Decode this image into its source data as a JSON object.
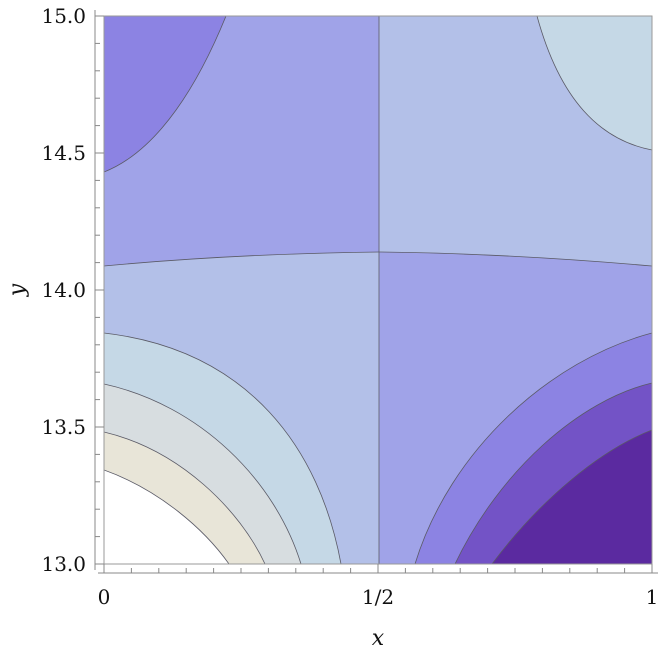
{
  "chart_data": {
    "type": "contour",
    "xlabel": "x",
    "ylabel": "y",
    "xlim": [
      0,
      1
    ],
    "ylim": [
      13.0,
      15.0
    ],
    "x_ticks": [
      {
        "value": 0,
        "label": "0"
      },
      {
        "value": 0.5,
        "label": "1/2"
      },
      {
        "value": 1,
        "label": "1"
      }
    ],
    "y_ticks": [
      {
        "value": 13.0,
        "label": "13.0"
      },
      {
        "value": 13.5,
        "label": "13.5"
      },
      {
        "value": 14.0,
        "label": "14.0"
      },
      {
        "value": 14.5,
        "label": "14.5"
      },
      {
        "value": 15.0,
        "label": "15.0"
      }
    ],
    "colors": {
      "lightest": "#e8e5d8",
      "light_gray": "#d7dde0",
      "pale_blue": "#c5d8e6",
      "blue_lavender": "#b3c0e8",
      "lavender": "#a0a3e8",
      "medium_purple": "#8c83e3",
      "purple": "#7353c6",
      "deep_purple": "#5b2aa0",
      "contour_line": "#5a5a66"
    }
  }
}
